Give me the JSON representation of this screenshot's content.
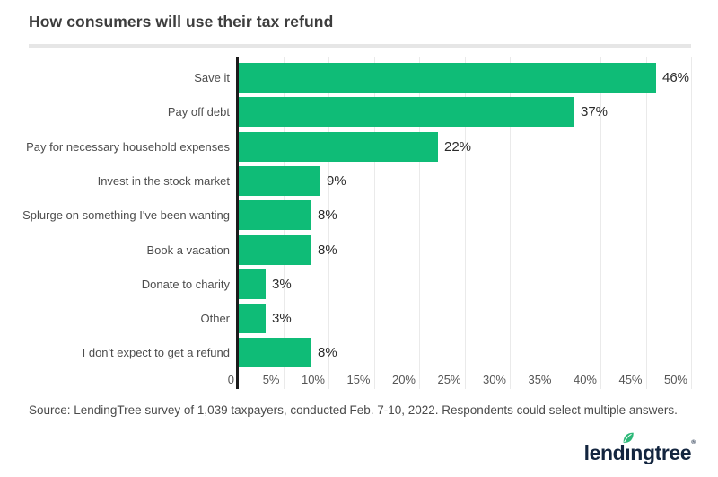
{
  "chart_data": {
    "type": "bar",
    "orientation": "horizontal",
    "title": "How consumers will use their tax refund",
    "categories": [
      "Save it",
      "Pay off debt",
      "Pay for necessary household expenses",
      "Invest in the stock market",
      "Splurge on something I've been wanting",
      "Book a vacation",
      "Donate to charity",
      "Other",
      "I don't expect to get a refund"
    ],
    "values": [
      46,
      37,
      22,
      9,
      8,
      8,
      3,
      3,
      8
    ],
    "value_labels": [
      "46%",
      "37%",
      "22%",
      "9%",
      "8%",
      "8%",
      "3%",
      "3%",
      "8%"
    ],
    "x_tick_labels": [
      "0",
      "5%",
      "10%",
      "15%",
      "20%",
      "25%",
      "30%",
      "35%",
      "40%",
      "45%",
      "50%"
    ],
    "x_tick_values": [
      0,
      5,
      10,
      15,
      20,
      25,
      30,
      35,
      40,
      45,
      50
    ],
    "xlim": [
      0,
      50
    ],
    "grid": "vertical",
    "legend": "none",
    "colors": {
      "bar": "#0fbc77",
      "axis_line": "#1b1b1b",
      "gridline": "#eaeaea",
      "title_text": "#3d3d3d",
      "category_text": "#4d4d4d",
      "tick_text": "#555555",
      "value_text": "#2b2b2b"
    }
  },
  "source_note": "Source: LendingTree survey of 1,039 taxpayers, conducted Feb. 7-10, 2022. Respondents could select multiple answers.",
  "branding": {
    "logo_text": "lendingtree",
    "registered_mark": "®",
    "logo_color": "#13253f",
    "leaf_color": "#2cb878"
  }
}
